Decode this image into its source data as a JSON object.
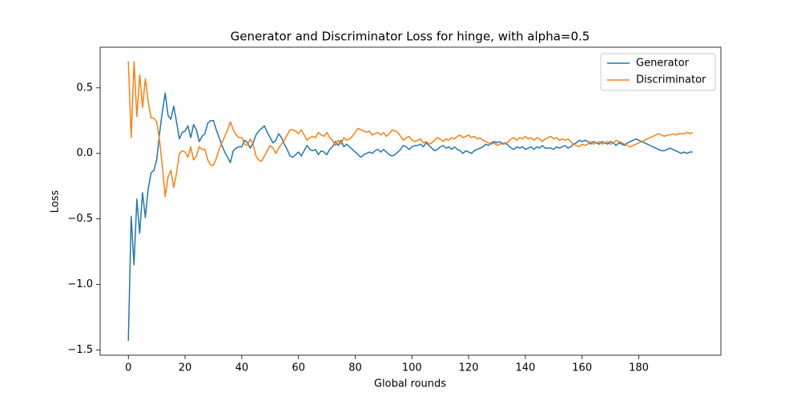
{
  "chart_data": {
    "type": "line",
    "title": "Generator and Discriminator Loss for hinge, with alpha=0.5",
    "xlabel": "Global rounds",
    "ylabel": "Loss",
    "x": [
      0,
      1,
      2,
      3,
      4,
      5,
      6,
      7,
      8,
      9,
      10,
      11,
      12,
      13,
      14,
      15,
      16,
      17,
      18,
      19,
      20,
      21,
      22,
      23,
      24,
      25,
      26,
      27,
      28,
      29,
      30,
      31,
      32,
      33,
      34,
      35,
      36,
      37,
      38,
      39,
      40,
      41,
      42,
      43,
      44,
      45,
      46,
      47,
      48,
      49,
      50,
      51,
      52,
      53,
      54,
      55,
      56,
      57,
      58,
      59,
      60,
      61,
      62,
      63,
      64,
      65,
      66,
      67,
      68,
      69,
      70,
      71,
      72,
      73,
      74,
      75,
      76,
      77,
      78,
      79,
      80,
      81,
      82,
      83,
      84,
      85,
      86,
      87,
      88,
      89,
      90,
      91,
      92,
      93,
      94,
      95,
      96,
      97,
      98,
      99,
      100,
      101,
      102,
      103,
      104,
      105,
      106,
      107,
      108,
      109,
      110,
      111,
      112,
      113,
      114,
      115,
      116,
      117,
      118,
      119,
      120,
      121,
      122,
      123,
      124,
      125,
      126,
      127,
      128,
      129,
      130,
      131,
      132,
      133,
      134,
      135,
      136,
      137,
      138,
      139,
      140,
      141,
      142,
      143,
      144,
      145,
      146,
      147,
      148,
      149,
      150,
      151,
      152,
      153,
      154,
      155,
      156,
      157,
      158,
      159,
      160,
      161,
      162,
      163,
      164,
      165,
      166,
      167,
      168,
      169,
      170,
      171,
      172,
      173,
      174,
      175,
      176,
      177,
      178,
      179,
      180,
      181,
      182,
      183,
      184,
      185,
      186,
      187,
      188,
      189,
      190,
      191,
      192,
      193,
      194,
      195,
      196,
      197,
      198,
      199
    ],
    "series": [
      {
        "name": "Generator",
        "color": "#1f77b4",
        "values": [
          -1.43,
          -0.48,
          -0.85,
          -0.35,
          -0.61,
          -0.3,
          -0.49,
          -0.27,
          -0.15,
          -0.13,
          -0.05,
          0.15,
          0.32,
          0.46,
          0.29,
          0.26,
          0.36,
          0.24,
          0.11,
          0.16,
          0.17,
          0.21,
          0.12,
          0.22,
          0.18,
          0.09,
          0.13,
          0.15,
          0.23,
          0.25,
          0.25,
          0.18,
          0.12,
          0.06,
          0.01,
          -0.03,
          -0.07,
          0.02,
          0.04,
          0.05,
          0.05,
          0.1,
          0.08,
          0.04,
          0.08,
          0.14,
          0.17,
          0.19,
          0.21,
          0.16,
          0.12,
          0.08,
          0.1,
          0.15,
          0.12,
          0.07,
          0.03,
          -0.02,
          -0.03,
          -0.01,
          0.01,
          -0.02,
          0.02,
          0.06,
          0.03,
          0.02,
          0.03,
          -0.01,
          0.02,
          0.01,
          -0.01,
          0.03,
          0.05,
          0.09,
          0.06,
          0.1,
          0.05,
          0.07,
          0.05,
          0.03,
          0.01,
          -0.01,
          -0.03,
          -0.01,
          0.0,
          0.01,
          0.0,
          0.02,
          0.03,
          0.01,
          0.03,
          0.01,
          -0.01,
          -0.02,
          -0.01,
          0.01,
          0.03,
          0.06,
          0.05,
          0.03,
          0.05,
          0.06,
          0.06,
          0.07,
          0.05,
          0.08,
          0.06,
          0.04,
          0.02,
          0.03,
          0.05,
          0.06,
          0.04,
          0.05,
          0.03,
          0.05,
          0.03,
          0.02,
          0.0,
          0.02,
          0.01,
          0.0,
          0.02,
          0.03,
          0.04,
          0.05,
          0.07,
          0.06,
          0.08,
          0.09,
          0.08,
          0.09,
          0.07,
          0.08,
          0.06,
          0.04,
          0.03,
          0.05,
          0.04,
          0.05,
          0.03,
          0.04,
          0.05,
          0.03,
          0.05,
          0.04,
          0.06,
          0.04,
          0.04,
          0.04,
          0.03,
          0.05,
          0.04,
          0.05,
          0.06,
          0.04,
          0.05,
          0.07,
          0.08,
          0.1,
          0.09,
          0.1,
          0.09,
          0.07,
          0.09,
          0.08,
          0.07,
          0.09,
          0.08,
          0.07,
          0.09,
          0.08,
          0.06,
          0.08,
          0.07,
          0.06,
          0.08,
          0.09,
          0.1,
          0.11,
          0.1,
          0.09,
          0.08,
          0.07,
          0.06,
          0.05,
          0.04,
          0.03,
          0.02,
          0.02,
          0.03,
          0.04,
          0.03,
          0.02,
          0.01,
          0.0,
          0.01,
          0.0,
          0.01,
          0.01
        ]
      },
      {
        "name": "Discriminator",
        "color": "#ff7f0e",
        "values": [
          0.7,
          0.12,
          0.7,
          0.28,
          0.6,
          0.35,
          0.57,
          0.4,
          0.27,
          0.27,
          0.24,
          0.1,
          -0.1,
          -0.33,
          -0.18,
          -0.13,
          -0.26,
          -0.15,
          0.0,
          0.02,
          0.01,
          -0.03,
          0.05,
          -0.05,
          -0.02,
          0.05,
          0.03,
          0.03,
          -0.05,
          -0.09,
          -0.09,
          -0.04,
          0.03,
          0.08,
          0.13,
          0.18,
          0.24,
          0.18,
          0.14,
          0.12,
          0.12,
          0.07,
          0.06,
          0.11,
          0.07,
          -0.02,
          -0.05,
          -0.06,
          -0.02,
          0.02,
          0.06,
          0.04,
          0.0,
          0.04,
          0.07,
          0.1,
          0.14,
          0.18,
          0.18,
          0.17,
          0.15,
          0.18,
          0.14,
          0.1,
          0.12,
          0.13,
          0.12,
          0.16,
          0.14,
          0.13,
          0.16,
          0.12,
          0.1,
          0.06,
          0.1,
          0.07,
          0.12,
          0.1,
          0.11,
          0.13,
          0.16,
          0.19,
          0.18,
          0.17,
          0.16,
          0.17,
          0.14,
          0.15,
          0.16,
          0.14,
          0.16,
          0.13,
          0.15,
          0.18,
          0.17,
          0.16,
          0.13,
          0.1,
          0.12,
          0.13,
          0.1,
          0.09,
          0.1,
          0.11,
          0.08,
          0.09,
          0.07,
          0.08,
          0.1,
          0.12,
          0.11,
          0.09,
          0.11,
          0.1,
          0.12,
          0.11,
          0.13,
          0.14,
          0.12,
          0.13,
          0.14,
          0.12,
          0.13,
          0.11,
          0.12,
          0.1,
          0.09,
          0.08,
          0.07,
          0.08,
          0.06,
          0.07,
          0.08,
          0.07,
          0.09,
          0.11,
          0.12,
          0.1,
          0.12,
          0.11,
          0.13,
          0.11,
          0.12,
          0.1,
          0.12,
          0.11,
          0.09,
          0.11,
          0.12,
          0.13,
          0.11,
          0.12,
          0.1,
          0.11,
          0.1,
          0.11,
          0.09,
          0.07,
          0.06,
          0.05,
          0.07,
          0.06,
          0.07,
          0.09,
          0.07,
          0.08,
          0.09,
          0.07,
          0.08,
          0.09,
          0.07,
          0.08,
          0.1,
          0.09,
          0.08,
          0.07,
          0.06,
          0.05,
          0.06,
          0.07,
          0.08,
          0.09,
          0.1,
          0.11,
          0.12,
          0.13,
          0.14,
          0.15,
          0.14,
          0.13,
          0.14,
          0.14,
          0.15,
          0.14,
          0.15,
          0.15,
          0.15,
          0.16,
          0.15,
          0.16
        ]
      }
    ],
    "xlim": [
      -9.95,
      208.95
    ],
    "ylim": [
      -1.54,
      0.81
    ],
    "xticks": [
      0,
      20,
      40,
      60,
      80,
      100,
      120,
      140,
      160,
      180
    ],
    "yticks": [
      {
        "value": -1.5,
        "label": "−1.5"
      },
      {
        "value": -1.0,
        "label": "−1.0"
      },
      {
        "value": -0.5,
        "label": "−0.5"
      },
      {
        "value": 0.0,
        "label": "0.0"
      },
      {
        "value": 0.5,
        "label": "0.5"
      }
    ],
    "grid": false,
    "legend": "upper right"
  }
}
